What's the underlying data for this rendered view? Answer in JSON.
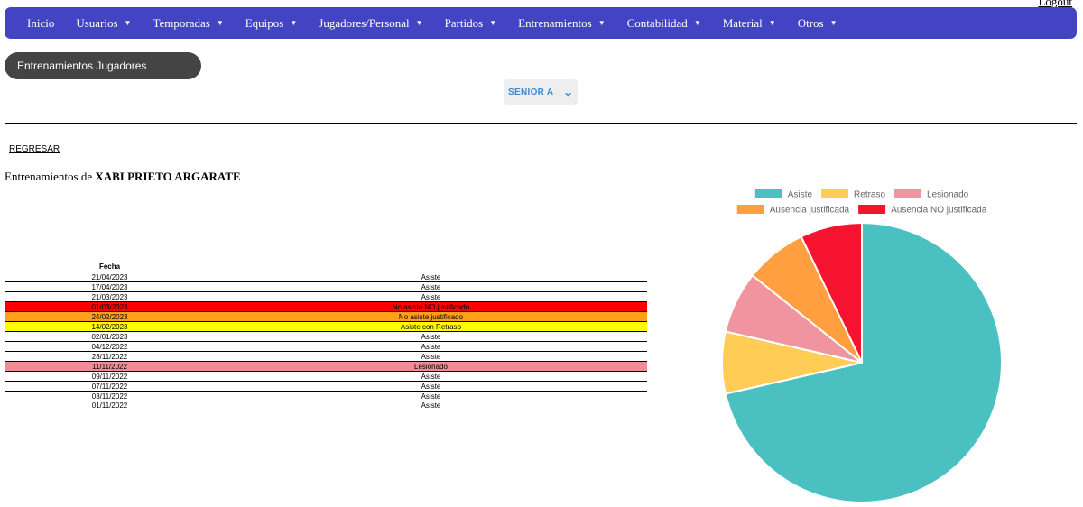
{
  "header": {
    "logout_label": "Logout"
  },
  "nav": {
    "items": [
      {
        "label": "Inicio",
        "dropdown": false
      },
      {
        "label": "Usuarios",
        "dropdown": true
      },
      {
        "label": "Temporadas",
        "dropdown": true
      },
      {
        "label": "Equipos",
        "dropdown": true
      },
      {
        "label": "Jugadores/Personal",
        "dropdown": true
      },
      {
        "label": "Partidos",
        "dropdown": true
      },
      {
        "label": "Entrenamientos",
        "dropdown": true
      },
      {
        "label": "Contabilidad",
        "dropdown": true
      },
      {
        "label": "Material",
        "dropdown": true
      },
      {
        "label": "Otros",
        "dropdown": true
      }
    ],
    "background": "#4244c4"
  },
  "section": {
    "title": "Entrenamientos Jugadores"
  },
  "team_select": {
    "value": "SENIOR A"
  },
  "back_link": "REGRESAR",
  "heading": {
    "prefix": "Entrenamientos de",
    "player": "XABI PRIETO ARGARATE"
  },
  "table": {
    "header": "Fecha",
    "rows": [
      {
        "date": "21/04/2023",
        "status": "Asiste",
        "color": "#ffffff"
      },
      {
        "date": "17/04/2023",
        "status": "Asiste",
        "color": "#ffffff"
      },
      {
        "date": "21/03/2023",
        "status": "Asiste",
        "color": "#ffffff"
      },
      {
        "date": "01/03/2023",
        "status": "No asiste NO justificado",
        "color": "#ff0000"
      },
      {
        "date": "24/02/2023",
        "status": "No asiste justificado",
        "color": "#ff9f1a"
      },
      {
        "date": "14/02/2023",
        "status": "Asiste con Retraso",
        "color": "#ffff00"
      },
      {
        "date": "02/01/2023",
        "status": "Asiste",
        "color": "#ffffff"
      },
      {
        "date": "04/12/2022",
        "status": "Asiste",
        "color": "#ffffff"
      },
      {
        "date": "28/11/2022",
        "status": "Asiste",
        "color": "#ffffff"
      },
      {
        "date": "11/11/2022",
        "status": "Lesionado",
        "color": "#f08c96"
      },
      {
        "date": "09/11/2022",
        "status": "Asiste",
        "color": "#ffffff"
      },
      {
        "date": "07/11/2022",
        "status": "Asiste",
        "color": "#ffffff"
      },
      {
        "date": "03/11/2022",
        "status": "Asiste",
        "color": "#ffffff"
      },
      {
        "date": "01/11/2022",
        "status": "Asiste",
        "color": "#ffffff"
      }
    ]
  },
  "chart_data": {
    "type": "pie",
    "categories": [
      "Asiste",
      "Retraso",
      "Lesionado",
      "Ausencia justificada",
      "Ausencia NO justificada"
    ],
    "values": [
      10,
      1,
      1,
      1,
      1
    ],
    "colors": [
      "#4bc0c0",
      "#ffcd56",
      "#f0959f",
      "#ff9f40",
      "#f5132f"
    ],
    "legend_position": "top"
  }
}
